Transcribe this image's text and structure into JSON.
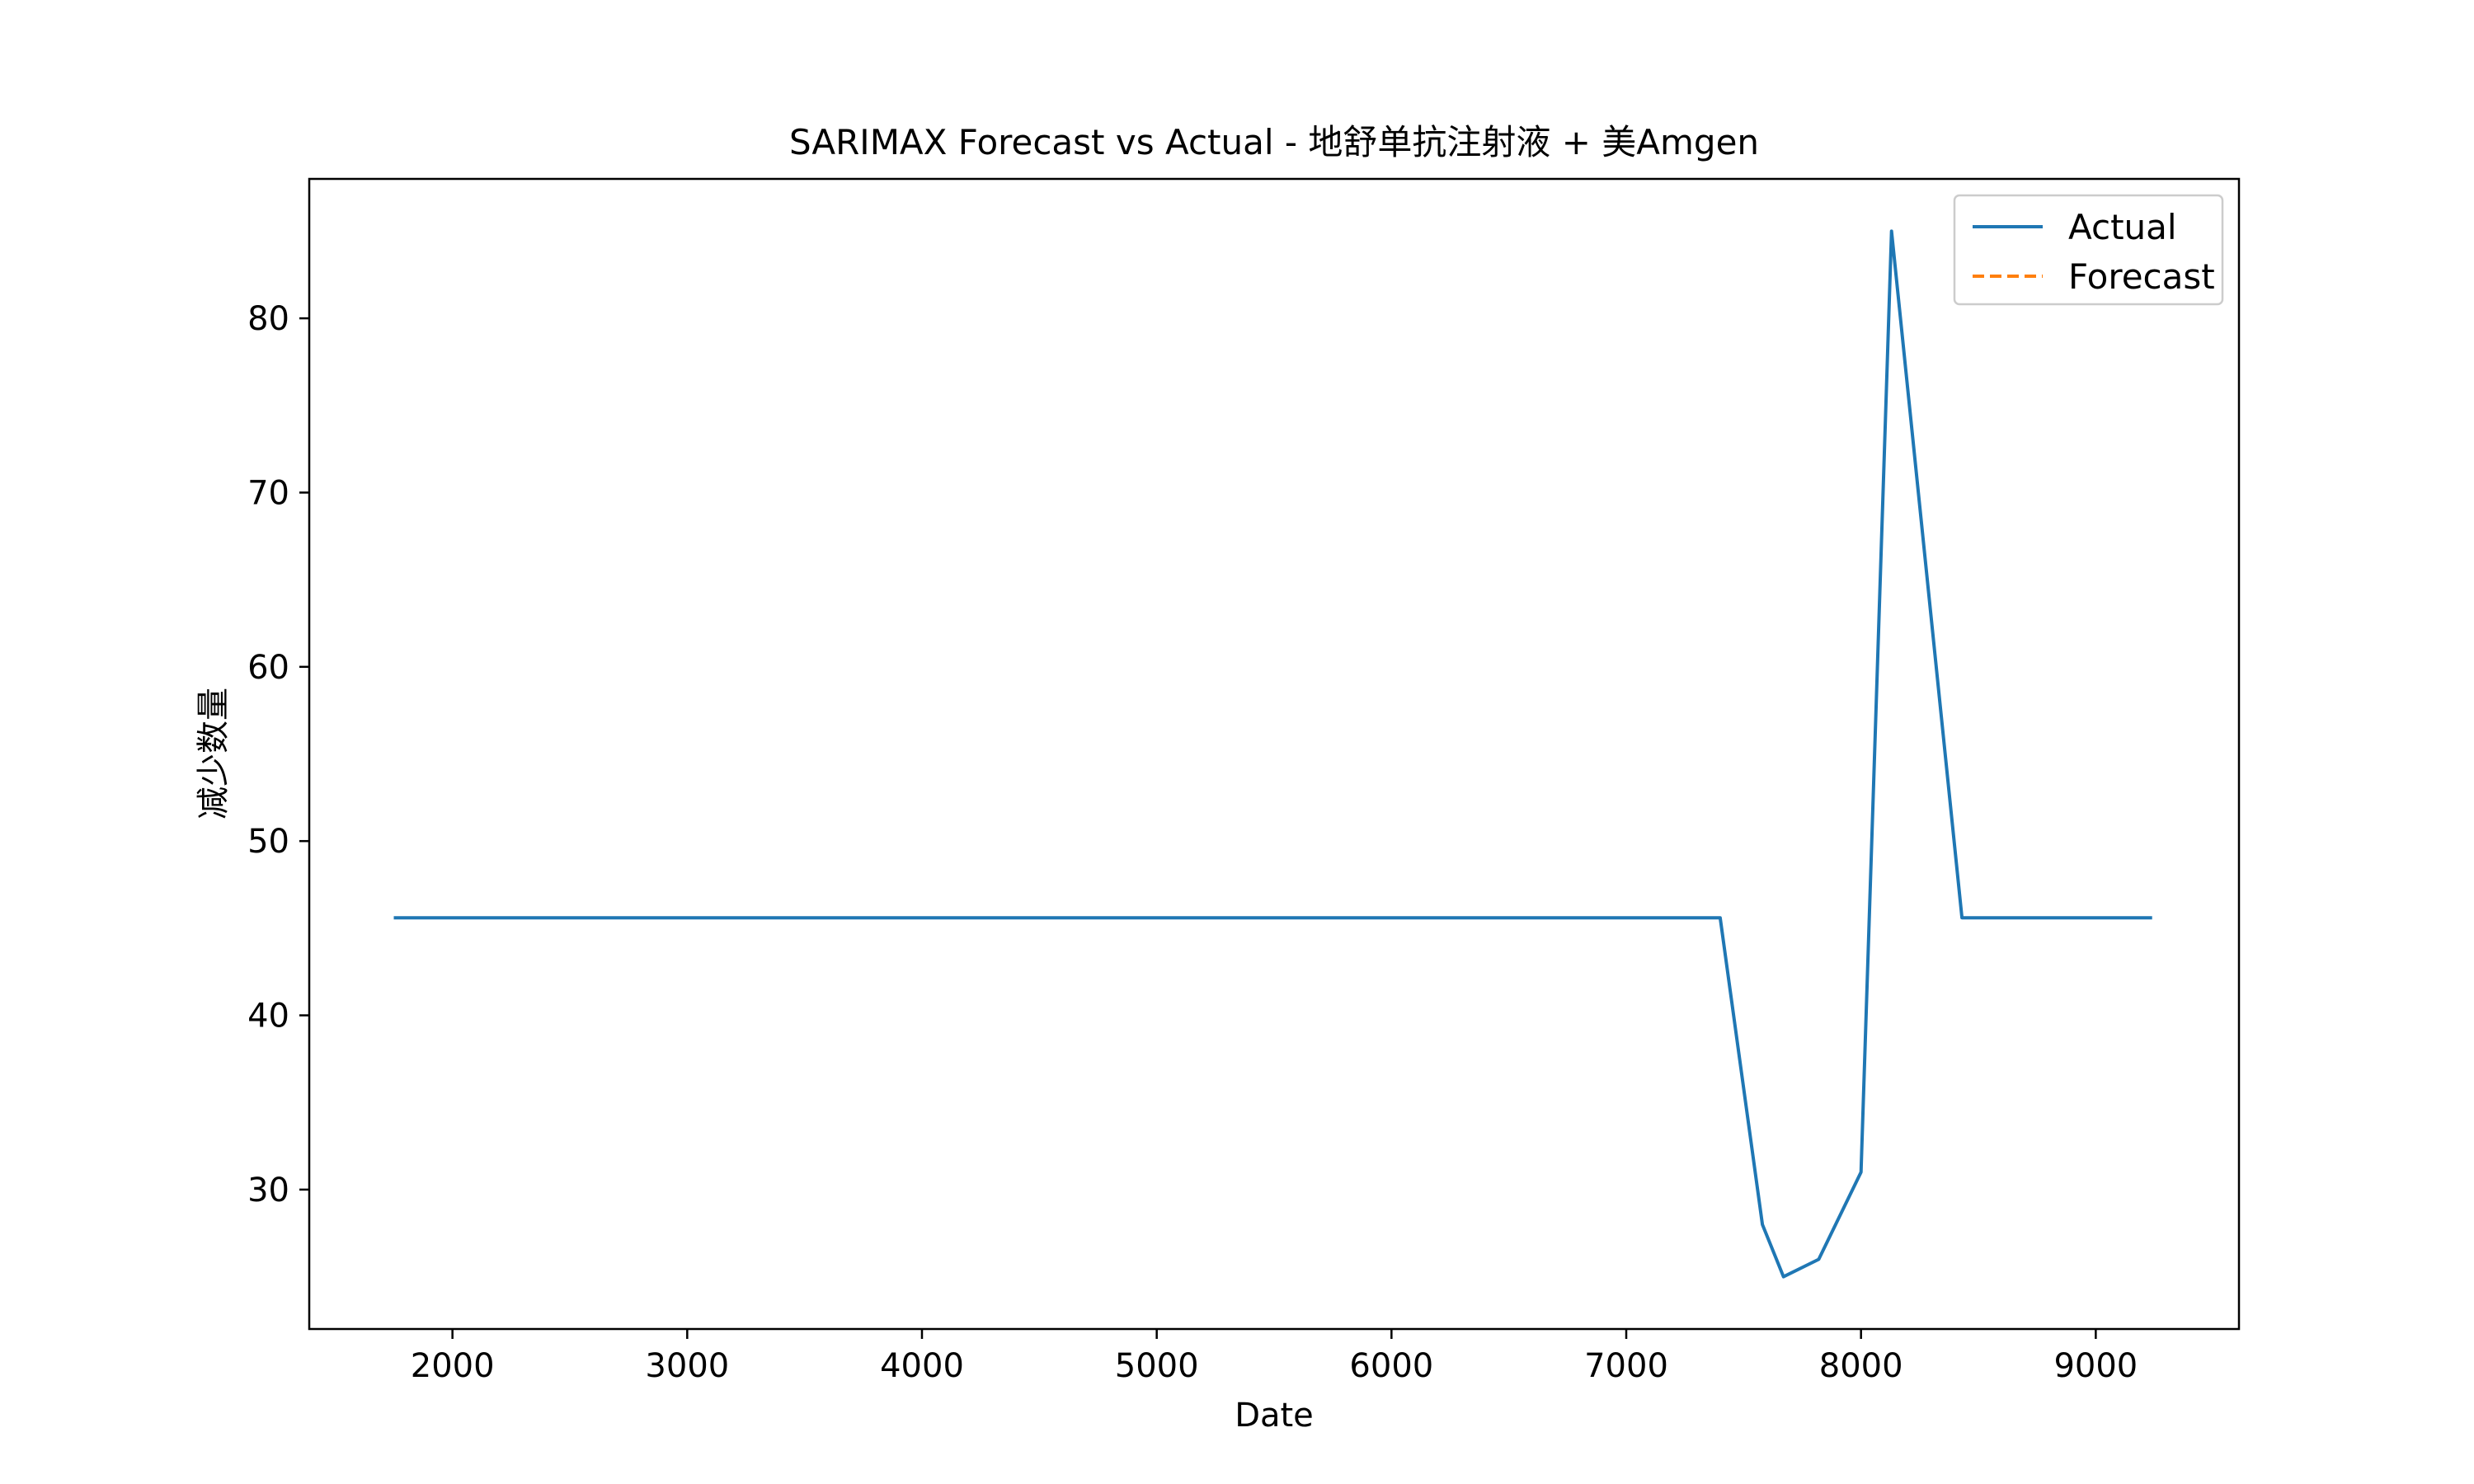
{
  "chart_data": {
    "type": "line",
    "title": "SARIMAX Forecast vs Actual - 地舒单抗注射液 + 美Amgen",
    "xlabel": "Date",
    "ylabel": "减少数量",
    "xlim": [
      1390,
      9610
    ],
    "ylim": [
      22,
      88
    ],
    "xticks": [
      2000,
      3000,
      4000,
      5000,
      6000,
      7000,
      8000,
      9000
    ],
    "yticks": [
      30,
      40,
      50,
      60,
      70,
      80
    ],
    "grid": false,
    "legend_position": "top-right",
    "series": [
      {
        "name": "Actual",
        "color": "#1f77b4",
        "style": "solid",
        "x": [
          1750,
          7400,
          7580,
          7670,
          7820,
          8000,
          8130,
          8430,
          9240
        ],
        "y": [
          45.6,
          45.6,
          28,
          25,
          26,
          31,
          85,
          45.6,
          45.6
        ]
      },
      {
        "name": "Forecast",
        "color": "#ff7f0e",
        "style": "dashed",
        "x": [],
        "y": []
      }
    ]
  }
}
